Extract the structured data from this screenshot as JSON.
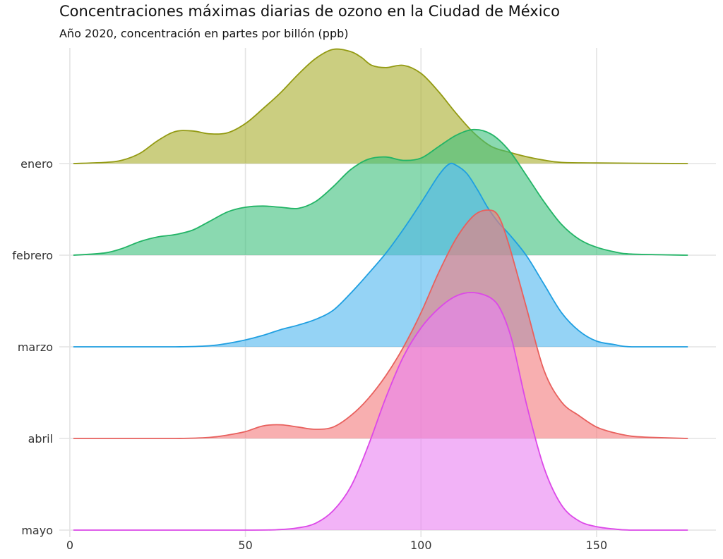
{
  "chart_data": {
    "type": "ridgeline",
    "title": "Concentraciones máximas diarias de ozono en la Ciudad de México",
    "subtitle": "Año 2020, concentración en partes por billón (ppb)",
    "xlabel": "",
    "ylabel": "",
    "xlim": [
      -3,
      184
    ],
    "x_ticks": [
      "0",
      "50",
      "100",
      "150"
    ],
    "x_tick_values": [
      0,
      50,
      100,
      150
    ],
    "grid": true,
    "density_scale": [
      0,
      1
    ],
    "series": [
      {
        "name": "enero",
        "color": "#939a12",
        "fill": "#a9ae2b",
        "points": [
          [
            1,
            0
          ],
          [
            10,
            0.01
          ],
          [
            15,
            0.03
          ],
          [
            20,
            0.09
          ],
          [
            25,
            0.2
          ],
          [
            30,
            0.28
          ],
          [
            35,
            0.285
          ],
          [
            40,
            0.26
          ],
          [
            45,
            0.27
          ],
          [
            50,
            0.35
          ],
          [
            55,
            0.48
          ],
          [
            60,
            0.62
          ],
          [
            65,
            0.78
          ],
          [
            70,
            0.92
          ],
          [
            75,
            1.0
          ],
          [
            80,
            0.98
          ],
          [
            83,
            0.93
          ],
          [
            86,
            0.86
          ],
          [
            90,
            0.84
          ],
          [
            95,
            0.86
          ],
          [
            100,
            0.79
          ],
          [
            105,
            0.63
          ],
          [
            110,
            0.44
          ],
          [
            115,
            0.27
          ],
          [
            120,
            0.15
          ],
          [
            125,
            0.1
          ],
          [
            130,
            0.06
          ],
          [
            135,
            0.03
          ],
          [
            140,
            0.01
          ],
          [
            150,
            0.005
          ],
          [
            176,
            0
          ]
        ]
      },
      {
        "name": "febrero",
        "color": "#22b466",
        "fill": "#3cc07b",
        "points": [
          [
            1,
            0
          ],
          [
            10,
            0.02
          ],
          [
            15,
            0.06
          ],
          [
            20,
            0.12
          ],
          [
            25,
            0.16
          ],
          [
            30,
            0.18
          ],
          [
            35,
            0.22
          ],
          [
            40,
            0.3
          ],
          [
            45,
            0.38
          ],
          [
            50,
            0.42
          ],
          [
            55,
            0.43
          ],
          [
            60,
            0.42
          ],
          [
            65,
            0.41
          ],
          [
            70,
            0.47
          ],
          [
            75,
            0.6
          ],
          [
            80,
            0.75
          ],
          [
            85,
            0.84
          ],
          [
            90,
            0.86
          ],
          [
            95,
            0.83
          ],
          [
            100,
            0.85
          ],
          [
            105,
            0.95
          ],
          [
            110,
            1.05
          ],
          [
            115,
            1.1
          ],
          [
            120,
            1.06
          ],
          [
            125,
            0.92
          ],
          [
            130,
            0.7
          ],
          [
            135,
            0.47
          ],
          [
            140,
            0.27
          ],
          [
            145,
            0.14
          ],
          [
            150,
            0.07
          ],
          [
            155,
            0.03
          ],
          [
            160,
            0.01
          ],
          [
            176,
            0
          ]
        ]
      },
      {
        "name": "marzo",
        "color": "#1f9fe1",
        "fill": "#4fb6ef",
        "points": [
          [
            1,
            0
          ],
          [
            30,
            0
          ],
          [
            40,
            0.01
          ],
          [
            45,
            0.03
          ],
          [
            50,
            0.06
          ],
          [
            55,
            0.1
          ],
          [
            60,
            0.15
          ],
          [
            65,
            0.19
          ],
          [
            70,
            0.24
          ],
          [
            75,
            0.32
          ],
          [
            80,
            0.47
          ],
          [
            85,
            0.64
          ],
          [
            90,
            0.82
          ],
          [
            95,
            1.03
          ],
          [
            100,
            1.26
          ],
          [
            105,
            1.5
          ],
          [
            108,
            1.6
          ],
          [
            110,
            1.59
          ],
          [
            113,
            1.52
          ],
          [
            116,
            1.38
          ],
          [
            119,
            1.22
          ],
          [
            122,
            1.09
          ],
          [
            125,
            0.99
          ],
          [
            130,
            0.8
          ],
          [
            135,
            0.55
          ],
          [
            140,
            0.3
          ],
          [
            145,
            0.14
          ],
          [
            150,
            0.05
          ],
          [
            155,
            0.02
          ],
          [
            160,
            0
          ],
          [
            176,
            0
          ]
        ]
      },
      {
        "name": "abril",
        "color": "#e8605d",
        "fill": "#f3797b",
        "points": [
          [
            1,
            0
          ],
          [
            30,
            0
          ],
          [
            40,
            0.01
          ],
          [
            45,
            0.03
          ],
          [
            50,
            0.06
          ],
          [
            55,
            0.11
          ],
          [
            60,
            0.12
          ],
          [
            65,
            0.1
          ],
          [
            70,
            0.08
          ],
          [
            75,
            0.1
          ],
          [
            80,
            0.2
          ],
          [
            85,
            0.35
          ],
          [
            90,
            0.55
          ],
          [
            95,
            0.8
          ],
          [
            100,
            1.1
          ],
          [
            105,
            1.45
          ],
          [
            110,
            1.75
          ],
          [
            115,
            1.95
          ],
          [
            119,
            2.0
          ],
          [
            122,
            1.95
          ],
          [
            125,
            1.7
          ],
          [
            130,
            1.15
          ],
          [
            135,
            0.6
          ],
          [
            140,
            0.32
          ],
          [
            145,
            0.2
          ],
          [
            150,
            0.1
          ],
          [
            155,
            0.05
          ],
          [
            160,
            0.02
          ],
          [
            165,
            0.01
          ],
          [
            176,
            0
          ]
        ]
      },
      {
        "name": "mayo",
        "color": "#dc48e8",
        "fill": "#ea81f2",
        "points": [
          [
            1,
            0
          ],
          [
            50,
            0
          ],
          [
            60,
            0.005
          ],
          [
            65,
            0.02
          ],
          [
            70,
            0.06
          ],
          [
            75,
            0.17
          ],
          [
            80,
            0.38
          ],
          [
            85,
            0.74
          ],
          [
            90,
            1.16
          ],
          [
            95,
            1.52
          ],
          [
            100,
            1.77
          ],
          [
            105,
            1.94
          ],
          [
            110,
            2.05
          ],
          [
            115,
            2.08
          ],
          [
            120,
            2.03
          ],
          [
            123,
            1.91
          ],
          [
            126,
            1.65
          ],
          [
            130,
            1.11
          ],
          [
            135,
            0.55
          ],
          [
            140,
            0.22
          ],
          [
            145,
            0.08
          ],
          [
            150,
            0.03
          ],
          [
            155,
            0.01
          ],
          [
            160,
            0
          ],
          [
            176,
            0
          ]
        ]
      }
    ]
  }
}
